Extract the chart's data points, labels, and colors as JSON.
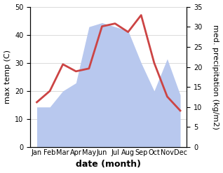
{
  "months": [
    "Jan",
    "Feb",
    "Mar",
    "Apr",
    "May",
    "Jun",
    "Jul",
    "Aug",
    "Sep",
    "Oct",
    "Nov",
    "Dec"
  ],
  "temp": [
    16,
    20,
    29.5,
    27,
    28,
    43,
    44,
    41,
    47,
    30,
    18,
    13
  ],
  "precip": [
    10,
    10,
    14,
    16,
    30,
    31,
    30,
    29,
    21,
    14,
    22,
    13
  ],
  "temp_color": "#cc4444",
  "precip_color": "#b8c8ee",
  "ylabel_left": "max temp (C)",
  "ylabel_right": "med. precipitation (kg/m2)",
  "xlabel": "date (month)",
  "ylim_left": [
    0,
    50
  ],
  "ylim_right": [
    0,
    35
  ],
  "yticks_left": [
    0,
    10,
    20,
    30,
    40,
    50
  ],
  "yticks_right": [
    0,
    5,
    10,
    15,
    20,
    25,
    30,
    35
  ],
  "temp_linewidth": 2.0,
  "xlabel_fontsize": 9,
  "ylabel_fontsize": 8,
  "tick_fontsize": 7
}
